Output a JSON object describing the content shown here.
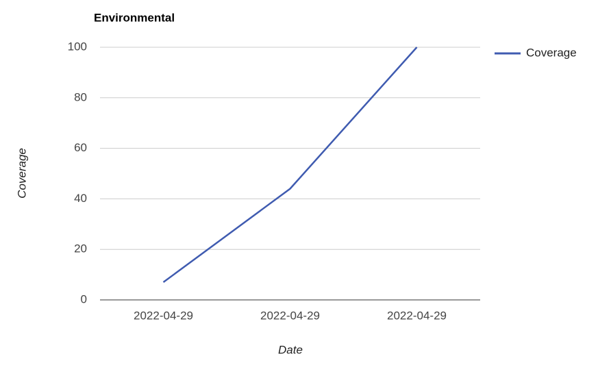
{
  "chart_data": {
    "type": "line",
    "title": "Environmental",
    "x_label": "Date",
    "y_label": "Coverage",
    "categories": [
      "2022-04-29",
      "2022-04-29",
      "2022-04-29"
    ],
    "series": [
      {
        "name": "Coverage",
        "color": "#3f5bb0",
        "values": [
          7,
          44,
          100
        ]
      }
    ],
    "ylim": [
      0,
      100
    ],
    "yticks": [
      0,
      20,
      40,
      60,
      80,
      100
    ],
    "grid": true,
    "legend": "right"
  }
}
